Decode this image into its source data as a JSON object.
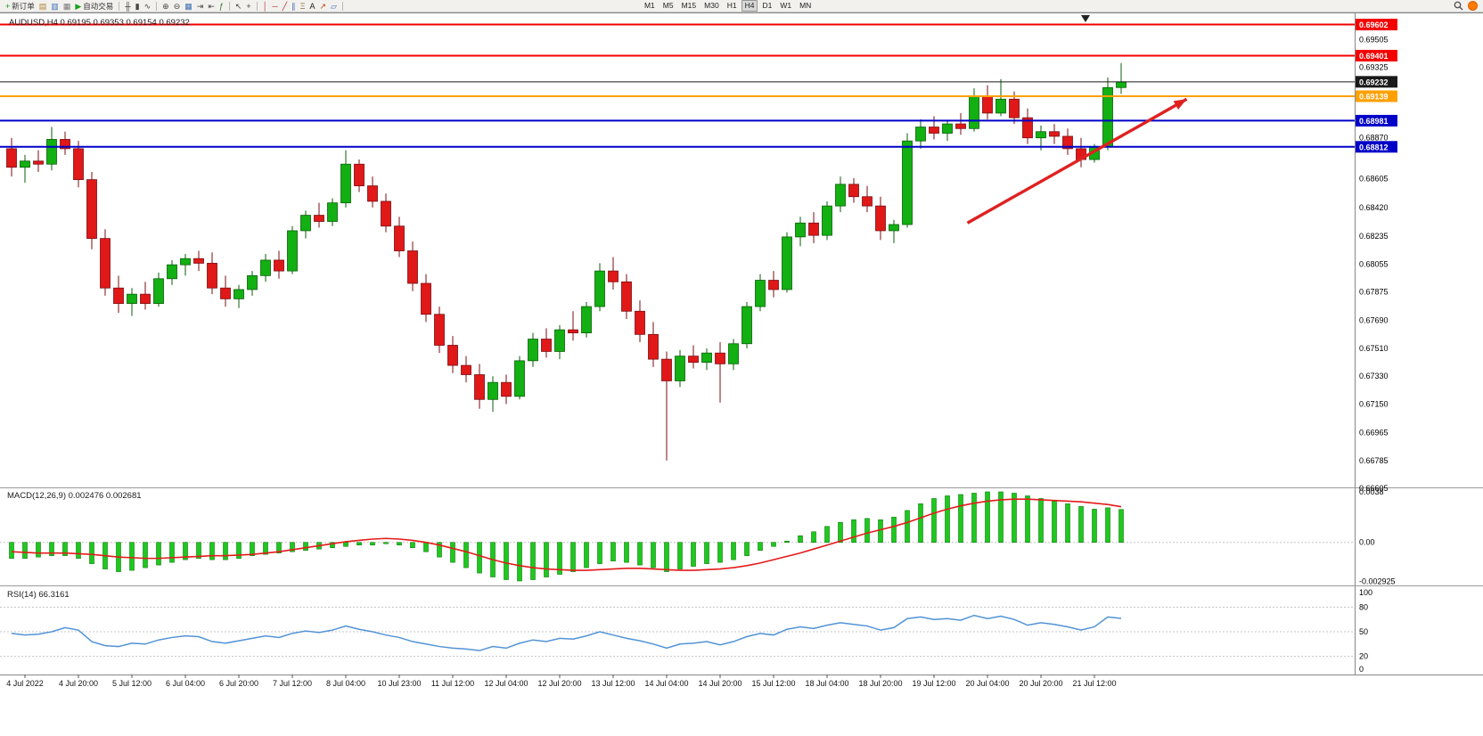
{
  "toolbar": {
    "items": [
      {
        "type": "button",
        "name": "new-order-button",
        "glyph": "+",
        "glyph_color": "#1E9E1E",
        "label": "新订单"
      },
      {
        "type": "button",
        "name": "charts-icon",
        "glyph": "▤",
        "glyph_color": "#B08030"
      },
      {
        "type": "button",
        "name": "market-watch-icon",
        "glyph": "▥",
        "glyph_color": "#3C6EB4"
      },
      {
        "type": "button",
        "name": "navigator-icon",
        "glyph": "▦",
        "glyph_color": "#777777"
      },
      {
        "type": "button",
        "name": "auto-trading-button",
        "glyph": "▶",
        "glyph_color": "#18A018",
        "label": "自动交易"
      },
      {
        "type": "sep"
      },
      {
        "type": "button",
        "name": "bar-chart-type-icon",
        "glyph": "╫",
        "glyph_color": "#444444"
      },
      {
        "type": "button",
        "name": "candle-chart-type-icon",
        "glyph": "▮",
        "glyph_color": "#444444"
      },
      {
        "type": "button",
        "name": "line-chart-type-icon",
        "glyph": "∿",
        "glyph_color": "#444444"
      },
      {
        "type": "sep"
      },
      {
        "type": "button",
        "name": "zoom-in-icon",
        "glyph": "⊕",
        "glyph_color": "#444444"
      },
      {
        "type": "button",
        "name": "zoom-out-icon",
        "glyph": "⊖",
        "glyph_color": "#444444"
      },
      {
        "type": "button",
        "name": "tile-windows-icon",
        "glyph": "▦",
        "glyph_color": "#3C6EB4"
      },
      {
        "type": "button",
        "name": "auto-scroll-icon",
        "glyph": "⇥",
        "glyph_color": "#444444"
      },
      {
        "type": "button",
        "name": "chart-shift-icon",
        "glyph": "⇤",
        "glyph_color": "#444444"
      },
      {
        "type": "button",
        "name": "indicators-icon",
        "glyph": "ƒ",
        "glyph_color": "#2A7A2A"
      },
      {
        "type": "sep"
      },
      {
        "type": "button",
        "name": "cursor-icon",
        "glyph": "↖",
        "glyph_color": "#444444"
      },
      {
        "type": "button",
        "name": "crosshair-icon",
        "glyph": "+",
        "glyph_color": "#444444"
      },
      {
        "type": "sep"
      },
      {
        "type": "button",
        "name": "vertical-line-icon",
        "glyph": "│",
        "glyph_color": "#B03030"
      },
      {
        "type": "button",
        "name": "horizontal-line-icon",
        "glyph": "─",
        "glyph_color": "#B03030"
      },
      {
        "type": "button",
        "name": "trendline-icon",
        "glyph": "╱",
        "glyph_color": "#B03030"
      },
      {
        "type": "button",
        "name": "channel-icon",
        "glyph": "∥",
        "glyph_color": "#3C6EB4"
      },
      {
        "type": "button",
        "name": "fibonacci-icon",
        "glyph": "Ξ",
        "glyph_color": "#8A6D3B"
      },
      {
        "type": "button",
        "name": "text-tool-icon",
        "glyph": "A",
        "glyph_color": "#222222"
      },
      {
        "type": "button",
        "name": "arrows-tool-icon",
        "glyph": "↗",
        "glyph_color": "#C04000"
      },
      {
        "type": "button",
        "name": "shapes-tool-icon",
        "glyph": "▱",
        "glyph_color": "#3C6EB4"
      },
      {
        "type": "sep"
      }
    ],
    "timeframes": [
      "M1",
      "M5",
      "M15",
      "M30",
      "H1",
      "H4",
      "D1",
      "W1",
      "MN"
    ],
    "active_timeframe": "H4"
  },
  "chart": {
    "symbol": "AUDUSD",
    "period": "H4",
    "title": "AUDUSD,H4 0.69195 0.69353 0.69154 0.69232",
    "ohlc": {
      "open": "0.69195",
      "high": "0.69353",
      "low": "0.69154",
      "close": "0.69232"
    },
    "axis_labels": [
      "0.69505",
      "0.69325",
      "0.68870",
      "0.68605",
      "0.68420",
      "0.68235",
      "0.68055",
      "0.67875",
      "0.67690",
      "0.67510",
      "0.67330",
      "0.67150",
      "0.66965",
      "0.66785",
      "0.66605"
    ],
    "price_lines": [
      {
        "price": "0.69602",
        "color": "#F40000",
        "kind": "resistance-line"
      },
      {
        "price": "0.69401",
        "color": "#F40000",
        "kind": "resistance-line"
      },
      {
        "price": "0.69232",
        "color": "#1A1A1A",
        "kind": "current-price-line"
      },
      {
        "price": "0.69139",
        "color": "#FFA000",
        "kind": "pivot-line"
      },
      {
        "price": "0.68981",
        "color": "#0000C8",
        "kind": "support-line"
      },
      {
        "price": "0.68812",
        "color": "#0000C8",
        "kind": "support-line"
      }
    ]
  },
  "macd": {
    "label": "MACD(12,26,9) 0.002476 0.002681",
    "values": {
      "main": "0.002476",
      "signal": "0.002681"
    },
    "axis_labels": [
      "0.0038",
      "0.00",
      "-0.002925"
    ]
  },
  "rsi": {
    "label": "RSI(14) 66.3161",
    "value": "66.3161",
    "axis_labels": [
      "100",
      "80",
      "50",
      "20",
      "0"
    ]
  },
  "chart_data": {
    "type": "candlestick",
    "symbol": "AUDUSD",
    "timeframe": "H4",
    "x_labels": [
      "4 Jul 2022",
      "4 Jul 20:00",
      "5 Jul 12:00",
      "6 Jul 04:00",
      "6 Jul 20:00",
      "7 Jul 12:00",
      "8 Jul 04:00",
      "10 Jul 23:00",
      "11 Jul 12:00",
      "12 Jul 04:00",
      "12 Jul 20:00",
      "13 Jul 12:00",
      "14 Jul 04:00",
      "14 Jul 20:00",
      "15 Jul 12:00",
      "18 Jul 04:00",
      "18 Jul 20:00",
      "19 Jul 12:00",
      "20 Jul 04:00",
      "20 Jul 20:00",
      "21 Jul 12:00"
    ],
    "x_label_first_bar": 1,
    "x_label_step": 4,
    "price_axis_range": [
      0.6656,
      0.6968
    ],
    "candles_ohlc": [
      [
        0.688,
        0.6887,
        0.6862,
        0.6868
      ],
      [
        0.6868,
        0.6876,
        0.6858,
        0.6872
      ],
      [
        0.6872,
        0.6879,
        0.6865,
        0.687
      ],
      [
        0.687,
        0.6894,
        0.6866,
        0.6886
      ],
      [
        0.6886,
        0.6891,
        0.6876,
        0.688
      ],
      [
        0.688,
        0.6885,
        0.6855,
        0.686
      ],
      [
        0.686,
        0.6865,
        0.6815,
        0.6822
      ],
      [
        0.6822,
        0.6828,
        0.6785,
        0.679
      ],
      [
        0.679,
        0.6798,
        0.6774,
        0.678
      ],
      [
        0.678,
        0.679,
        0.6772,
        0.6786
      ],
      [
        0.6786,
        0.6794,
        0.6776,
        0.678
      ],
      [
        0.678,
        0.68,
        0.6778,
        0.6796
      ],
      [
        0.6796,
        0.6808,
        0.6792,
        0.6805
      ],
      [
        0.6805,
        0.6812,
        0.6798,
        0.6809
      ],
      [
        0.6809,
        0.6814,
        0.6801,
        0.6806
      ],
      [
        0.6806,
        0.6813,
        0.6786,
        0.679
      ],
      [
        0.679,
        0.6798,
        0.6778,
        0.6783
      ],
      [
        0.6783,
        0.6792,
        0.6777,
        0.6789
      ],
      [
        0.6789,
        0.6801,
        0.6785,
        0.6798
      ],
      [
        0.6798,
        0.6812,
        0.6794,
        0.6808
      ],
      [
        0.6808,
        0.6814,
        0.6796,
        0.6801
      ],
      [
        0.6801,
        0.683,
        0.6799,
        0.6827
      ],
      [
        0.6827,
        0.684,
        0.6822,
        0.6837
      ],
      [
        0.6837,
        0.6845,
        0.6829,
        0.6833
      ],
      [
        0.6833,
        0.6848,
        0.683,
        0.6845
      ],
      [
        0.6845,
        0.6879,
        0.6842,
        0.687
      ],
      [
        0.687,
        0.6873,
        0.6852,
        0.6856
      ],
      [
        0.6856,
        0.6862,
        0.6842,
        0.6846
      ],
      [
        0.6846,
        0.6851,
        0.6826,
        0.683
      ],
      [
        0.683,
        0.6836,
        0.681,
        0.6814
      ],
      [
        0.6814,
        0.682,
        0.6788,
        0.6793
      ],
      [
        0.6793,
        0.6799,
        0.6768,
        0.6773
      ],
      [
        0.6773,
        0.6778,
        0.6748,
        0.6753
      ],
      [
        0.6753,
        0.6759,
        0.6735,
        0.674
      ],
      [
        0.674,
        0.6746,
        0.6729,
        0.6734
      ],
      [
        0.6734,
        0.6741,
        0.6712,
        0.6718
      ],
      [
        0.6718,
        0.6733,
        0.671,
        0.6729
      ],
      [
        0.6729,
        0.6734,
        0.6715,
        0.672
      ],
      [
        0.672,
        0.6746,
        0.6718,
        0.6743
      ],
      [
        0.6743,
        0.6761,
        0.6739,
        0.6757
      ],
      [
        0.6757,
        0.6764,
        0.6745,
        0.6749
      ],
      [
        0.6749,
        0.6766,
        0.6744,
        0.6763
      ],
      [
        0.6763,
        0.6775,
        0.6756,
        0.6761
      ],
      [
        0.6761,
        0.6781,
        0.6758,
        0.6778
      ],
      [
        0.6778,
        0.6806,
        0.6775,
        0.6801
      ],
      [
        0.6801,
        0.681,
        0.6789,
        0.6794
      ],
      [
        0.6794,
        0.6799,
        0.677,
        0.6775
      ],
      [
        0.6775,
        0.6782,
        0.6755,
        0.676
      ],
      [
        0.676,
        0.6768,
        0.6739,
        0.6744
      ],
      [
        0.6744,
        0.6749,
        0.66785,
        0.673
      ],
      [
        0.673,
        0.675,
        0.6726,
        0.6746
      ],
      [
        0.6746,
        0.6753,
        0.6738,
        0.6742
      ],
      [
        0.6742,
        0.6751,
        0.6737,
        0.6748
      ],
      [
        0.6748,
        0.6755,
        0.6716,
        0.6741
      ],
      [
        0.6741,
        0.6757,
        0.6737,
        0.6754
      ],
      [
        0.6754,
        0.6781,
        0.6751,
        0.6778
      ],
      [
        0.6778,
        0.6799,
        0.6775,
        0.6795
      ],
      [
        0.6795,
        0.6801,
        0.6784,
        0.6789
      ],
      [
        0.6789,
        0.6826,
        0.6787,
        0.6823
      ],
      [
        0.6823,
        0.6836,
        0.6817,
        0.6832
      ],
      [
        0.6832,
        0.6839,
        0.6819,
        0.6824
      ],
      [
        0.6824,
        0.6846,
        0.6821,
        0.6843
      ],
      [
        0.6843,
        0.6862,
        0.6839,
        0.6857
      ],
      [
        0.6857,
        0.6861,
        0.6845,
        0.6849
      ],
      [
        0.6849,
        0.6856,
        0.6839,
        0.6843
      ],
      [
        0.6843,
        0.6849,
        0.6821,
        0.6827
      ],
      [
        0.6827,
        0.6834,
        0.6819,
        0.6831
      ],
      [
        0.6831,
        0.689,
        0.6829,
        0.6885
      ],
      [
        0.6885,
        0.6899,
        0.688,
        0.6894
      ],
      [
        0.6894,
        0.6901,
        0.6886,
        0.689
      ],
      [
        0.689,
        0.6898,
        0.6885,
        0.6896
      ],
      [
        0.6896,
        0.6903,
        0.6889,
        0.6893
      ],
      [
        0.6893,
        0.6919,
        0.6891,
        0.6914
      ],
      [
        0.6914,
        0.6921,
        0.6899,
        0.6903
      ],
      [
        0.6903,
        0.6925,
        0.6901,
        0.6912
      ],
      [
        0.6912,
        0.6917,
        0.6896,
        0.69
      ],
      [
        0.69,
        0.6906,
        0.6883,
        0.6887
      ],
      [
        0.6887,
        0.6895,
        0.6879,
        0.6891
      ],
      [
        0.6891,
        0.6896,
        0.6883,
        0.6888
      ],
      [
        0.6888,
        0.6893,
        0.6876,
        0.688
      ],
      [
        0.688,
        0.6887,
        0.6868,
        0.6873
      ],
      [
        0.6873,
        0.6883,
        0.6871,
        0.6881
      ],
      [
        0.6881,
        0.6926,
        0.6879,
        0.69195
      ],
      [
        0.69195,
        0.69353,
        0.69154,
        0.69232
      ]
    ],
    "macd": {
      "range": [
        -0.0031,
        0.004
      ],
      "histogram": [
        -0.0012,
        -0.0012,
        -0.0011,
        -0.001,
        -0.001,
        -0.0012,
        -0.0016,
        -0.002,
        -0.0022,
        -0.0021,
        -0.0019,
        -0.0017,
        -0.0015,
        -0.0013,
        -0.0012,
        -0.0013,
        -0.0013,
        -0.0012,
        -0.001,
        -0.0009,
        -0.0008,
        -0.0007,
        -0.0006,
        -0.0005,
        -0.0004,
        -0.0003,
        -0.0002,
        -0.0002,
        -0.0001,
        -0.0002,
        -0.0004,
        -0.0007,
        -0.0011,
        -0.0015,
        -0.0019,
        -0.0023,
        -0.0026,
        -0.0028,
        -0.0029,
        -0.0028,
        -0.0026,
        -0.0024,
        -0.0022,
        -0.0019,
        -0.0016,
        -0.0014,
        -0.0015,
        -0.0017,
        -0.0019,
        -0.0022,
        -0.002,
        -0.0018,
        -0.0016,
        -0.0015,
        -0.0013,
        -0.001,
        -0.0006,
        -0.0003,
        0.0001,
        0.0005,
        0.0008,
        0.0012,
        0.0015,
        0.0017,
        0.0018,
        0.0017,
        0.0019,
        0.0024,
        0.0029,
        0.0033,
        0.0035,
        0.0036,
        0.0037,
        0.0038,
        0.0038,
        0.0037,
        0.0035,
        0.0033,
        0.0031,
        0.0029,
        0.0027,
        0.0025,
        0.0026,
        0.002476
      ],
      "signal": [
        -0.0007,
        -0.00075,
        -0.0008,
        -0.0008,
        -0.0008,
        -0.00085,
        -0.0009,
        -0.001,
        -0.0011,
        -0.00115,
        -0.0012,
        -0.0012,
        -0.00115,
        -0.0011,
        -0.00105,
        -0.001,
        -0.001,
        -0.00095,
        -0.0009,
        -0.0008,
        -0.0007,
        -0.00055,
        -0.0004,
        -0.00025,
        -0.0001,
        5e-05,
        0.00015,
        0.00025,
        0.0003,
        0.00025,
        0.00015,
        0.0,
        -0.0002,
        -0.00045,
        -0.0007,
        -0.001,
        -0.0013,
        -0.00155,
        -0.00175,
        -0.0019,
        -0.002,
        -0.00205,
        -0.0021,
        -0.0021,
        -0.00205,
        -0.002,
        -0.00195,
        -0.00195,
        -0.002,
        -0.00205,
        -0.0021,
        -0.0021,
        -0.00205,
        -0.002,
        -0.0019,
        -0.00175,
        -0.00155,
        -0.0013,
        -0.00105,
        -0.0008,
        -0.0005,
        -0.0002,
        0.0001,
        0.0004,
        0.0007,
        0.00095,
        0.0012,
        0.0015,
        0.00185,
        0.0022,
        0.0025,
        0.00275,
        0.00295,
        0.0031,
        0.0032,
        0.00325,
        0.00325,
        0.0032,
        0.00315,
        0.0031,
        0.00305,
        0.00295,
        0.00285,
        0.002681
      ]
    },
    "rsi": {
      "range": [
        0,
        100
      ],
      "levels": [
        80,
        50,
        20
      ],
      "values": [
        48,
        46,
        47,
        50,
        55,
        52,
        38,
        33,
        32,
        36,
        35,
        40,
        43,
        45,
        44,
        38,
        36,
        39,
        42,
        45,
        43,
        48,
        51,
        49,
        52,
        57,
        53,
        50,
        46,
        43,
        38,
        35,
        32,
        30,
        29,
        27,
        32,
        30,
        36,
        40,
        38,
        42,
        41,
        45,
        50,
        46,
        42,
        39,
        35,
        30,
        35,
        36,
        38,
        34,
        38,
        44,
        48,
        46,
        53,
        56,
        54,
        58,
        61,
        59,
        57,
        52,
        55,
        66,
        68,
        65,
        66,
        64,
        70,
        66,
        69,
        65,
        58,
        61,
        59,
        56,
        52,
        56,
        68,
        66.3
      ]
    },
    "annotations": [
      {
        "type": "trend-arrow",
        "color": "#E02020",
        "from": {
          "bar": 71.5,
          "price": 0.6832
        },
        "to": {
          "bar": 87.9,
          "price": 0.6912
        }
      },
      {
        "type": "triangle-marker",
        "color": "#222222",
        "bar": 80.4,
        "near_price": 0.6965
      }
    ]
  }
}
